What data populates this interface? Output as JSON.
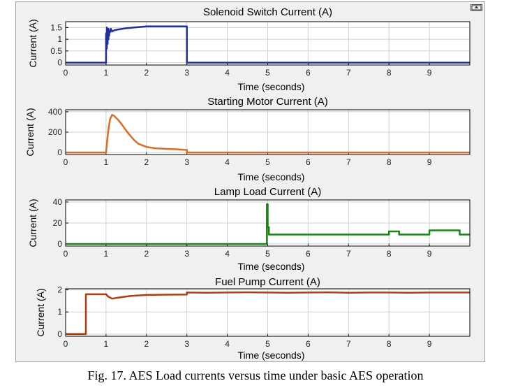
{
  "caption": "Fig. 17. AES Load currents versus time under basic AES operation",
  "chart_data": [
    {
      "type": "line",
      "title": "Solenoid Switch Current (A)",
      "xlabel": "Time (seconds)",
      "ylabel": "Current (A)",
      "xlim": [
        0,
        10
      ],
      "ylim": [
        -0.1,
        1.75
      ],
      "xticks": [
        "0",
        "1",
        "2",
        "3",
        "4",
        "5",
        "6",
        "7",
        "8",
        "9"
      ],
      "yticks": [
        "0",
        "0.5",
        "1",
        "1.5"
      ],
      "color": "#1f2f9e",
      "grid": true,
      "series": [
        {
          "x": [
            0,
            1.0,
            1.0,
            1.02,
            1.02,
            1.04,
            1.04,
            1.06,
            1.06,
            1.08,
            1.08,
            1.1,
            1.12,
            1.15,
            1.2,
            1.3,
            1.5,
            1.8,
            2.0,
            2.5,
            3.0,
            3.0,
            10
          ],
          "y": [
            0,
            0,
            1.25,
            0.6,
            1.5,
            0.8,
            1.4,
            1.0,
            1.45,
            1.15,
            1.3,
            1.3,
            1.45,
            1.33,
            1.38,
            1.42,
            1.47,
            1.52,
            1.55,
            1.55,
            1.55,
            0,
            0
          ]
        }
      ]
    },
    {
      "type": "line",
      "title": "Starting Motor Current (A)",
      "xlabel": "Time (seconds)",
      "ylabel": "Current (A)",
      "xlim": [
        0,
        10
      ],
      "ylim": [
        -20,
        420
      ],
      "xticks": [
        "0",
        "1",
        "2",
        "3",
        "4",
        "5",
        "6",
        "7",
        "8",
        "9"
      ],
      "yticks": [
        "0",
        "200",
        "400"
      ],
      "color": "#e06a1e",
      "grid": true,
      "series": [
        {
          "x": [
            0,
            1.0,
            1.05,
            1.1,
            1.15,
            1.2,
            1.3,
            1.4,
            1.5,
            1.6,
            1.7,
            1.8,
            2.0,
            2.2,
            2.5,
            2.8,
            3.0,
            3.0,
            10
          ],
          "y": [
            0,
            0,
            200,
            330,
            370,
            360,
            320,
            270,
            215,
            165,
            120,
            85,
            55,
            42,
            35,
            30,
            25,
            0,
            0
          ]
        }
      ]
    },
    {
      "type": "line",
      "title": "Lamp Load Current (A)",
      "xlabel": "Time (seconds)",
      "ylabel": "Current (A)",
      "xlim": [
        0,
        10
      ],
      "ylim": [
        -2,
        42
      ],
      "xticks": [
        "0",
        "1",
        "2",
        "3",
        "4",
        "5",
        "6",
        "7",
        "8",
        "9"
      ],
      "yticks": [
        "0",
        "20",
        "40"
      ],
      "color": "#188418",
      "grid": true,
      "series": [
        {
          "x": [
            0,
            4.98,
            4.98,
            5.0,
            5.0,
            5.03,
            5.03,
            8.0,
            8.0,
            8.25,
            8.25,
            9.0,
            9.0,
            9.75,
            9.75,
            10
          ],
          "y": [
            0,
            0,
            38,
            38,
            16,
            16,
            9,
            9,
            12,
            12,
            9,
            9,
            13,
            13,
            9,
            9
          ]
        }
      ]
    },
    {
      "type": "line",
      "title": "Fuel Pump Current (A)",
      "xlabel": "Time (seconds)",
      "ylabel": "Current (A)",
      "xlim": [
        0,
        10
      ],
      "ylim": [
        -0.1,
        2.05
      ],
      "xticks": [
        "0",
        "1",
        "2",
        "3",
        "4",
        "5",
        "6",
        "7",
        "8",
        "9"
      ],
      "yticks": [
        "0",
        "1",
        "2"
      ],
      "color": "#b23a0c",
      "grid": true,
      "series": [
        {
          "x": [
            0,
            0.5,
            0.5,
            1.0,
            1.05,
            1.15,
            1.3,
            1.6,
            2.0,
            2.5,
            3.0,
            3.0,
            3.5,
            4.0,
            4.5,
            5.0,
            5.5,
            6.0,
            6.5,
            7.0,
            7.5,
            8.0,
            8.5,
            9.0,
            9.5,
            10
          ],
          "y": [
            0,
            0,
            1.8,
            1.8,
            1.7,
            1.6,
            1.65,
            1.72,
            1.77,
            1.78,
            1.79,
            1.88,
            1.87,
            1.88,
            1.89,
            1.88,
            1.87,
            1.88,
            1.89,
            1.87,
            1.88,
            1.88,
            1.87,
            1.88,
            1.88,
            1.88
          ]
        }
      ]
    }
  ]
}
